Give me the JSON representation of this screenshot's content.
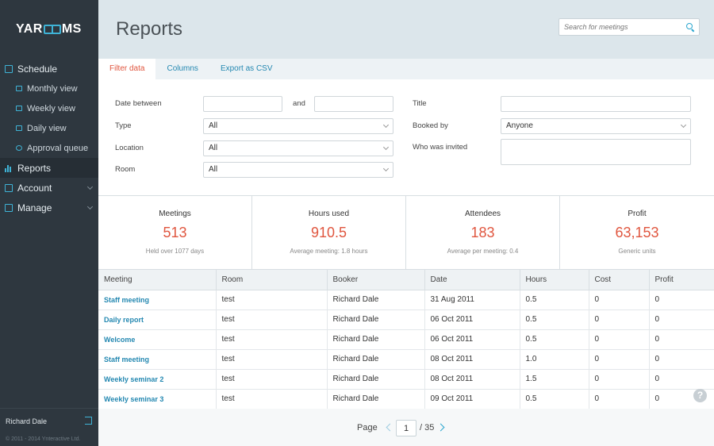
{
  "sidebar": {
    "logo": {
      "left": "YAR",
      "right": "MS"
    },
    "items": [
      {
        "label": "Schedule"
      },
      {
        "label": "Monthly view"
      },
      {
        "label": "Weekly view"
      },
      {
        "label": "Daily view"
      },
      {
        "label": "Approval queue"
      },
      {
        "label": "Reports"
      },
      {
        "label": "Account"
      },
      {
        "label": "Manage"
      }
    ],
    "user": "Richard Dale",
    "copyright": "© 2011 - 2014 Ynteractive Ltd."
  },
  "header": {
    "title": "Reports",
    "search_placeholder": "Search for meetings"
  },
  "tabs": [
    {
      "label": "Filter data"
    },
    {
      "label": "Columns"
    },
    {
      "label": "Export as CSV"
    }
  ],
  "filters": {
    "date_between_label": "Date between",
    "and_label": "and",
    "date_from": "",
    "date_to": "",
    "type_label": "Type",
    "type_value": "All",
    "location_label": "Location",
    "location_value": "All",
    "room_label": "Room",
    "room_value": "All",
    "title_label": "Title",
    "title_value": "",
    "booked_by_label": "Booked by",
    "booked_by_value": "Anyone",
    "invited_label": "Who was invited",
    "invited_value": ""
  },
  "stats": [
    {
      "label": "Meetings",
      "value": "513",
      "sub": "Held over 1077 days"
    },
    {
      "label": "Hours used",
      "value": "910.5",
      "sub": "Average meeting: 1.8 hours"
    },
    {
      "label": "Attendees",
      "value": "183",
      "sub": "Average per meeting: 0.4"
    },
    {
      "label": "Profit",
      "value": "63,153",
      "sub": "Generic units"
    }
  ],
  "table": {
    "columns": [
      "Meeting",
      "Room",
      "Booker",
      "Date",
      "Hours",
      "Cost",
      "Profit"
    ],
    "rows": [
      [
        "Staff meeting",
        "test",
        "Richard Dale",
        "31 Aug 2011",
        "0.5",
        "0",
        "0"
      ],
      [
        "Daily report",
        "test",
        "Richard Dale",
        "06 Oct 2011",
        "0.5",
        "0",
        "0"
      ],
      [
        "Welcome",
        "test",
        "Richard Dale",
        "06 Oct 2011",
        "0.5",
        "0",
        "0"
      ],
      [
        "Staff meeting",
        "test",
        "Richard Dale",
        "08 Oct 2011",
        "1.0",
        "0",
        "0"
      ],
      [
        "Weekly seminar 2",
        "test",
        "Richard Dale",
        "08 Oct 2011",
        "1.5",
        "0",
        "0"
      ],
      [
        "Weekly seminar 3",
        "test",
        "Richard Dale",
        "09 Oct 2011",
        "0.5",
        "0",
        "0"
      ]
    ]
  },
  "pager": {
    "label": "Page",
    "current": "1",
    "total": "/ 35"
  },
  "help": "?",
  "colors": {
    "accent": "#2488b1",
    "highlight": "#e0563f",
    "sidebar": "#2e373f",
    "header": "#dce6eb"
  }
}
